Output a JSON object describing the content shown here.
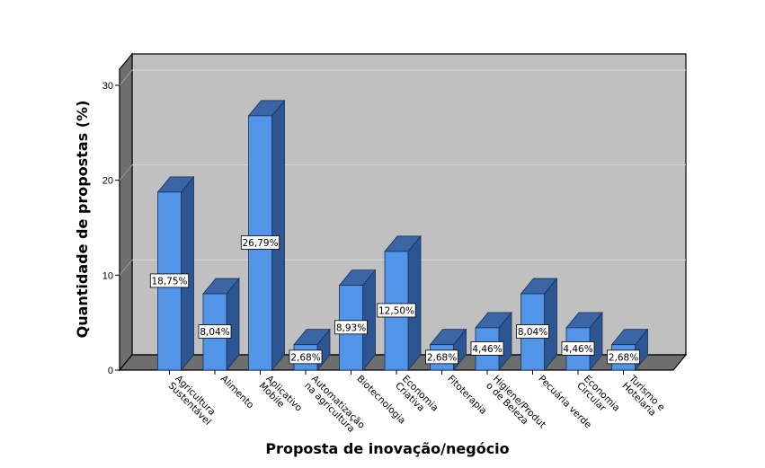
{
  "chart_data": {
    "type": "bar",
    "xlabel": "Proposta de inovação/negócio",
    "ylabel": "Quantidade de propostas (%)",
    "ylim": [
      0,
      30
    ],
    "yticks": [
      0,
      10,
      20,
      30
    ],
    "grid": true,
    "style": "3d",
    "colors": {
      "bar_front": "#5294E8",
      "bar_side": "#2D5591",
      "bar_top": "#3A66A6",
      "wall": "#C0C0C0",
      "floor": "#6E6E6E"
    },
    "categories": [
      [
        "Agricultura",
        "Sustentável"
      ],
      [
        "Alimento"
      ],
      [
        "Aplicativo",
        "Mobile"
      ],
      [
        "Automatização",
        "na agricultura"
      ],
      [
        "Biotecnologia"
      ],
      [
        "Economia",
        "Criativa"
      ],
      [
        "Fitoterapia"
      ],
      [
        "Higiene/Produt",
        "o de Beleza"
      ],
      [
        "Pecuária verde"
      ],
      [
        "Economia",
        "Circular"
      ],
      [
        "Turismo e",
        "Hotelaria"
      ]
    ],
    "values": [
      18.75,
      8.04,
      26.79,
      2.68,
      8.93,
      12.5,
      2.68,
      4.46,
      8.04,
      4.46,
      2.68
    ],
    "data_labels": [
      "18,75%",
      "8,04%",
      "26,79%",
      "2,68%",
      "8,93%",
      "12,50%",
      "2,68%",
      "4,46%",
      "8,04%",
      "4,46%",
      "2,68%"
    ]
  }
}
